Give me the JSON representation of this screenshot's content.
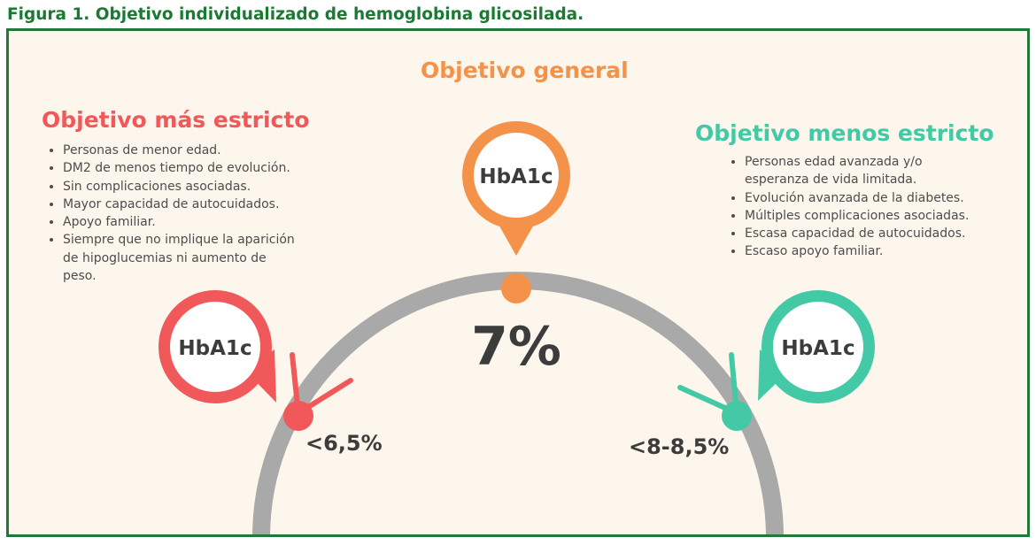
{
  "caption": "Figura 1. Objetivo individualizado de hemoglobina glicosilada.",
  "general": {
    "title": "Objetivo general",
    "marker_label": "HbA1c",
    "value": "7%"
  },
  "strict": {
    "title": "Objetivo más estricto",
    "marker_label": "HbA1c",
    "value": "<6,5%",
    "items": [
      "Personas de menor edad.",
      "DM2 de menos tiempo de evolución.",
      "Sin complicaciones asociadas.",
      "Mayor capacidad de autocuidados.",
      "Apoyo familiar.",
      "Siempre que no implique la aparición de hipoglucemias ni aumento de peso."
    ]
  },
  "less_strict": {
    "title": "Objetivo menos estricto",
    "marker_label": "HbA1c",
    "value": "<8-8,5%",
    "items": [
      "Personas edad avanzada y/o esperanza de vida limitada.",
      "Evolución avanzada de la diabetes.",
      "Múltiples complicaciones asociadas.",
      "Escasa capacidad de autocuidados.",
      "Escaso apoyo familiar."
    ]
  },
  "colors": {
    "caption": "#1a7a34",
    "border": "#1f7a3a",
    "background": "#fdf6ec",
    "general": "#f5924a",
    "strict": "#f0585a",
    "less_strict": "#43c9a5",
    "arc": "#a9a9a9",
    "value_text": "#3c3c3c"
  }
}
